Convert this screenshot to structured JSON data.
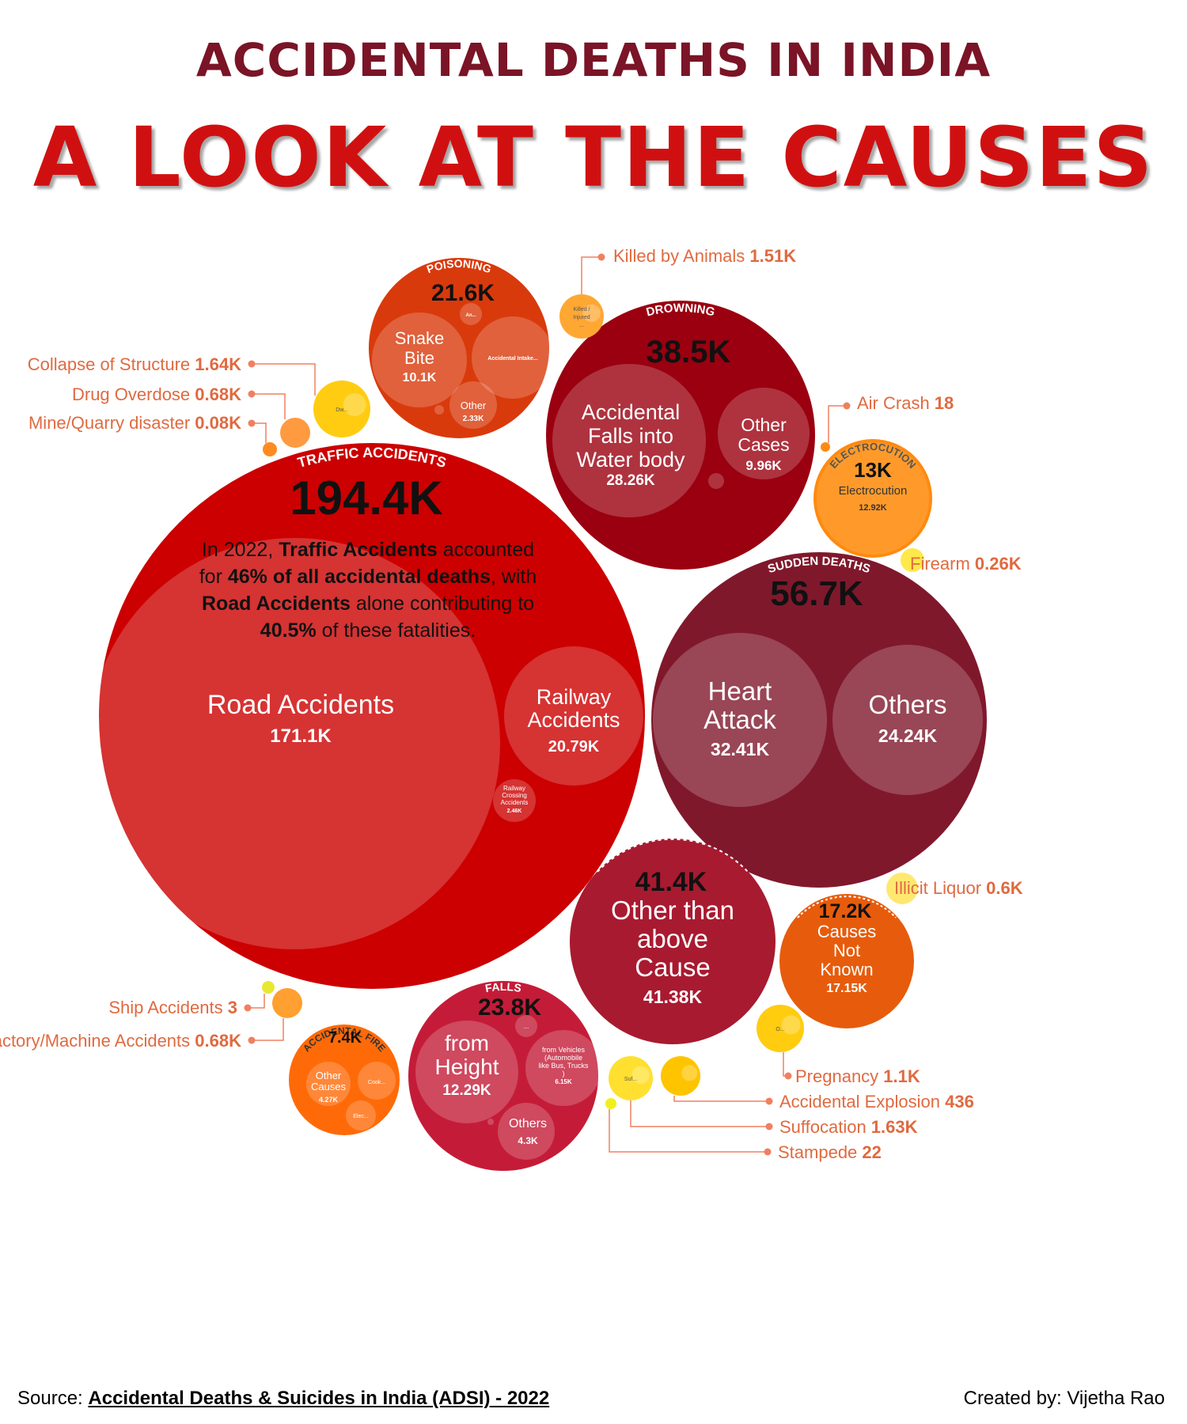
{
  "header": {
    "title": "ACCIDENTAL DEATHS IN INDIA",
    "subtitle": "A LOOK AT THE CAUSES"
  },
  "footer": {
    "source_label": "Source:",
    "source_name": "Accidental Deaths & Suicides in India (ADSI) - 2022",
    "credit": "Created by: Vijetha Rao"
  },
  "chart_data": {
    "type": "packed-bubble",
    "title": "ACCIDENTAL DEATHS IN INDIA",
    "subtitle": "A LOOK AT THE CAUSES",
    "unit": "deaths",
    "annotation": {
      "lines": [
        [
          {
            "t": "In 2022, ",
            "b": false
          },
          {
            "t": "Traffic Accidents",
            "b": true
          },
          {
            "t": " accounted",
            "b": false
          }
        ],
        [
          {
            "t": "for ",
            "b": false
          },
          {
            "t": "46% of all accidental deaths",
            "b": true
          },
          {
            "t": ", with",
            "b": false
          }
        ],
        [
          {
            "t": "Road Accidents",
            "b": true
          },
          {
            "t": " alone contributing to",
            "b": false
          }
        ],
        [
          {
            "t": "40.5%",
            "b": true
          },
          {
            "t": " of these fatalities.",
            "b": false
          }
        ]
      ]
    },
    "groups": [
      {
        "id": "traffic",
        "header": "TRAFFIC ACCIDENTS",
        "total_label": "194.4K",
        "value": 194400,
        "color": "#cc0000",
        "children": [
          {
            "lines": [
              "Road Accidents"
            ],
            "value_label": "171.1K",
            "value": 171100
          },
          {
            "lines": [
              "Railway",
              "Accidents"
            ],
            "value_label": "20.79K",
            "value": 20790
          },
          {
            "lines": [
              "Railway",
              "Crossing",
              "Accidents"
            ],
            "value_label": "2.46K",
            "value": 2460
          }
        ]
      },
      {
        "id": "sudden",
        "header": "SUDDEN DEATHS",
        "total_label": "56.7K",
        "value": 56700,
        "color": "#80182c",
        "children": [
          {
            "lines": [
              "Heart",
              "Attack"
            ],
            "value_label": "32.41K",
            "value": 32410
          },
          {
            "lines": [
              "Others"
            ],
            "value_label": "24.24K",
            "value": 24240
          }
        ]
      },
      {
        "id": "other_than",
        "header": "",
        "total_label": "41.4K",
        "value": 41400,
        "color": "#a81a30",
        "children": [
          {
            "lines": [
              "Other than",
              "above",
              "Cause"
            ],
            "value_label": "41.38K",
            "value": 41380
          }
        ]
      },
      {
        "id": "drowning",
        "header": "DROWNING",
        "total_label": "38.5K",
        "value": 38500,
        "color": "#9a0010",
        "children": [
          {
            "lines": [
              "Accidental",
              "Falls into",
              "Water body"
            ],
            "value_label": "28.26K",
            "value": 28260
          },
          {
            "lines": [
              "Other",
              "Cases"
            ],
            "value_label": "9.96K",
            "value": 9960
          }
        ]
      },
      {
        "id": "falls",
        "header": "FALLS",
        "total_label": "23.8K",
        "value": 23800,
        "color": "#c41c38",
        "children": [
          {
            "lines": [
              "from",
              "Height"
            ],
            "value_label": "12.29K",
            "value": 12290
          },
          {
            "lines": [
              "from Vehicles",
              "(Automobile",
              "like Bus, Trucks",
              ")"
            ],
            "value_label": "6.15K",
            "value": 6150
          },
          {
            "lines": [
              "Others"
            ],
            "value_label": "4.3K",
            "value": 4300
          }
        ]
      },
      {
        "id": "poisoning",
        "header": "POISONING",
        "total_label": "21.6K",
        "value": 21600,
        "color": "#d93a0c",
        "children": [
          {
            "lines": [
              "Snake",
              "Bite"
            ],
            "value_label": "10.1K",
            "value": 10100
          },
          {
            "lines": [
              "Accidental Intake..."
            ],
            "value_label": "",
            "value": 0
          },
          {
            "lines": [
              "Other"
            ],
            "value_label": "2.33K",
            "value": 2330
          },
          {
            "lines": [
              "An..."
            ],
            "value_label": "",
            "value": 0
          }
        ]
      },
      {
        "id": "unknown",
        "header": "",
        "total_label": "17.2K",
        "value": 17200,
        "color": "#e65c0c",
        "children": [
          {
            "lines": [
              "Causes",
              "Not",
              "Known"
            ],
            "value_label": "17.15K",
            "value": 17150
          }
        ]
      },
      {
        "id": "electrocution",
        "header": "ELECTROCUTION",
        "total_label": "13K",
        "value": 13000,
        "color": "#ff9a2a",
        "children": [
          {
            "lines": [
              "Electrocution"
            ],
            "value_label": "12.92K",
            "value": 12920
          }
        ]
      },
      {
        "id": "fire",
        "header": "ACCIDENTAL FIRE",
        "total_label": "7.4K",
        "value": 7400,
        "color": "#ff6a08",
        "children": [
          {
            "lines": [
              "Other",
              "Causes"
            ],
            "value_label": "4.27K",
            "value": 4270
          },
          {
            "lines": [
              "Cook..."
            ],
            "value_label": "",
            "value": 0
          },
          {
            "lines": [
              "Elec..."
            ],
            "value_label": "",
            "value": 0
          }
        ]
      }
    ],
    "small_items": [
      {
        "label": "Killed by Animals",
        "value_label": "1.51K",
        "value": 1510,
        "bubble_text": [
          "Killed /",
          "Injured",
          "..."
        ],
        "color": "#ffa733"
      },
      {
        "label": "Collapse of Structure",
        "value_label": "1.64K",
        "value": 1640,
        "bubble_text": [
          "Dw..."
        ],
        "color": "#ffcc11"
      },
      {
        "label": "Drug Overdose",
        "value_label": "0.68K",
        "value": 680,
        "bubble_text": [],
        "color": "#ff9a40"
      },
      {
        "label": "Mine/Quarry disaster",
        "value_label": "0.08K",
        "value": 80,
        "bubble_text": [],
        "color": "#ff8a20"
      },
      {
        "label": "Air Crash",
        "value_label": "18",
        "value": 18,
        "bubble_text": [],
        "color": "#ff8a10"
      },
      {
        "label": "Firearm",
        "value_label": "0.26K",
        "value": 260,
        "bubble_text": [],
        "color": "#ffe84a"
      },
      {
        "label": "Illicit Liquor",
        "value_label": "0.6K",
        "value": 600,
        "bubble_text": [],
        "color": "#ffe870"
      },
      {
        "label": "Ship Accidents",
        "value_label": "3",
        "value": 3,
        "bubble_text": [],
        "color": "#e8e830"
      },
      {
        "label": "Factory/Machine Accidents",
        "value_label": "0.68K",
        "value": 680,
        "bubble_text": [],
        "color": "#ffa030"
      },
      {
        "label": "Pregnancy",
        "value_label": "1.1K",
        "value": 1100,
        "bubble_text": [
          "O..."
        ],
        "color": "#ffcc10"
      },
      {
        "label": "Accidental Explosion",
        "value_label": "436",
        "value": 436,
        "bubble_text": [],
        "color": "#ffc400"
      },
      {
        "label": "Suffocation",
        "value_label": "1.63K",
        "value": 1630,
        "bubble_text": [
          "Suf..."
        ],
        "color": "#ffe030"
      },
      {
        "label": "Stampede",
        "value_label": "22",
        "value": 22,
        "bubble_text": [],
        "color": "#f0f020"
      }
    ]
  }
}
